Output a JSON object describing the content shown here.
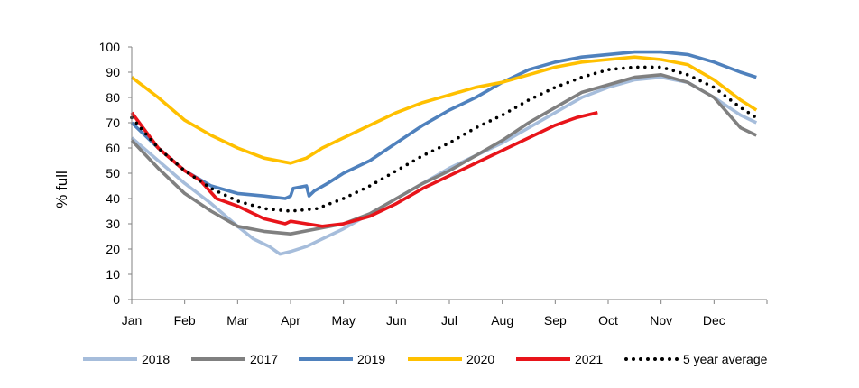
{
  "chart_data": {
    "type": "line",
    "ylabel": "% full",
    "xlabel": "",
    "title": "",
    "ylim": [
      0,
      100
    ],
    "yticks": [
      0,
      10,
      20,
      30,
      40,
      50,
      60,
      70,
      80,
      90,
      100
    ],
    "categories": [
      "Jan",
      "Feb",
      "Mar",
      "Apr",
      "May",
      "Jun",
      "Jul",
      "Aug",
      "Sep",
      "Oct",
      "Nov",
      "Dec"
    ],
    "x_unit": "month",
    "grid": false,
    "legend_position": "bottom",
    "series": [
      {
        "name": "2018",
        "color": "#a6bddb",
        "style": "solid",
        "x": [
          0,
          0.5,
          1,
          1.5,
          2,
          2.3,
          2.6,
          2.8,
          3.0,
          3.3,
          3.6,
          4.0,
          4.5,
          5,
          5.5,
          6,
          6.5,
          7,
          7.5,
          8,
          8.5,
          9,
          9.5,
          10,
          10.5,
          11,
          11.5,
          11.8
        ],
        "values": [
          64,
          55,
          46,
          38,
          29,
          24,
          21,
          18,
          19,
          21,
          24,
          28,
          34,
          40,
          46,
          52,
          57,
          62,
          68,
          74,
          80,
          84,
          87,
          88,
          86,
          80,
          73,
          70
        ]
      },
      {
        "name": "2017",
        "color": "#808080",
        "style": "solid",
        "x": [
          0,
          0.5,
          1,
          1.5,
          2,
          2.5,
          3.0,
          3.5,
          4.0,
          4.5,
          5,
          5.5,
          6,
          6.5,
          7,
          7.5,
          8,
          8.5,
          9,
          9.5,
          10,
          10.5,
          11,
          11.5,
          11.8
        ],
        "values": [
          63,
          52,
          42,
          35,
          29,
          27,
          26,
          28,
          30,
          34,
          40,
          46,
          51,
          57,
          63,
          70,
          76,
          82,
          85,
          88,
          89,
          86,
          80,
          68,
          65
        ]
      },
      {
        "name": "2019",
        "color": "#4f81bd",
        "style": "solid",
        "x": [
          0,
          0.5,
          1,
          1.5,
          2,
          2.5,
          2.9,
          3.0,
          3.05,
          3.3,
          3.35,
          3.45,
          3.7,
          4.0,
          4.5,
          5,
          5.5,
          6,
          6.5,
          7,
          7.5,
          8,
          8.5,
          9,
          9.5,
          10,
          10.5,
          11,
          11.5,
          11.8
        ],
        "values": [
          70,
          60,
          51,
          45,
          42,
          41,
          40,
          41,
          44,
          45,
          41,
          43,
          46,
          50,
          55,
          62,
          69,
          75,
          80,
          86,
          91,
          94,
          96,
          97,
          98,
          98,
          97,
          94,
          90,
          88
        ]
      },
      {
        "name": "2020",
        "color": "#ffc000",
        "style": "solid",
        "x": [
          0,
          0.5,
          1,
          1.5,
          2,
          2.5,
          3.0,
          3.3,
          3.6,
          4.0,
          4.5,
          5,
          5.5,
          6,
          6.5,
          7,
          7.5,
          8,
          8.5,
          9,
          9.5,
          10,
          10.5,
          11,
          11.5,
          11.8
        ],
        "values": [
          88,
          80,
          71,
          65,
          60,
          56,
          54,
          56,
          60,
          64,
          69,
          74,
          78,
          81,
          84,
          86,
          89,
          92,
          94,
          95,
          96,
          95,
          93,
          87,
          79,
          75
        ]
      },
      {
        "name": "2021",
        "color": "#e8141a",
        "style": "solid",
        "x": [
          0,
          0.5,
          1,
          1.3,
          1.6,
          2,
          2.5,
          2.9,
          3.0,
          3.3,
          3.6,
          4.0,
          4.5,
          5,
          5.5,
          6,
          6.5,
          7,
          7.5,
          8,
          8.4,
          8.8
        ],
        "values": [
          74,
          60,
          51,
          47,
          40,
          37,
          32,
          30,
          31,
          30,
          29,
          30,
          33,
          38,
          44,
          49,
          54,
          59,
          64,
          69,
          72,
          74
        ]
      },
      {
        "name": "5 year average",
        "color": "#000000",
        "style": "dotted",
        "x": [
          0,
          0.5,
          1,
          1.5,
          2,
          2.5,
          3.0,
          3.5,
          4.0,
          4.5,
          5,
          5.5,
          6,
          6.5,
          7,
          7.5,
          8,
          8.5,
          9,
          9.5,
          10,
          10.5,
          11,
          11.5,
          11.8
        ],
        "values": [
          72,
          60,
          51,
          44,
          39,
          36,
          35,
          36,
          40,
          45,
          51,
          57,
          62,
          68,
          73,
          79,
          84,
          88,
          91,
          92,
          92,
          89,
          84,
          76,
          72
        ]
      }
    ]
  }
}
